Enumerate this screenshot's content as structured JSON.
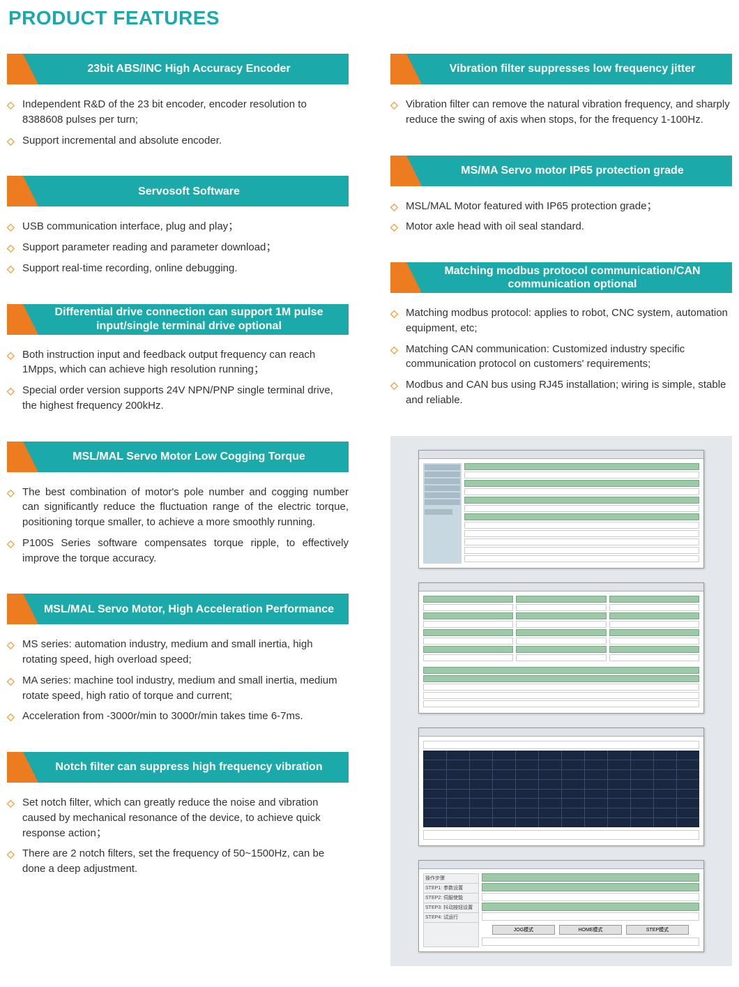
{
  "page_title": "PRODUCT FEATURES",
  "colors": {
    "accent_teal": "#1ba9a9",
    "accent_orange": "#ec7c1f",
    "bullet_orange": "#f2a23e",
    "text": "#333333",
    "screenshot_bg": "#e4e8ec",
    "mock_green": "#9cc9a8",
    "mock_chart_bg": "#1a2740"
  },
  "left": [
    {
      "title": "23bit ABS/INC High Accuracy Encoder",
      "items": [
        "Independent R&D of the 23 bit encoder, encoder resolution to 8388608 pulses per turn;",
        "Support incremental and absolute encoder."
      ]
    },
    {
      "title": "Servosoft Software",
      "items": [
        "USB communication interface, plug and play；",
        "Support parameter reading and parameter download；",
        "Support real-time recording, online debugging."
      ]
    },
    {
      "title": "Differential drive connection can support 1M pulse input/single terminal drive optional",
      "items": [
        "Both instruction input and feedback output frequency can reach 1Mpps, which can achieve high resolution running；",
        "Special order version supports 24V NPN/PNP single terminal drive, the highest frequency 200kHz."
      ]
    },
    {
      "title": "MSL/MAL Servo Motor Low Cogging Torque",
      "justify": true,
      "items": [
        "The best combination of motor's pole number and cogging number can significantly reduce the fluctuation range of the electric torque, positioning torque smaller, to achieve a more smoothly running.",
        "P100S Series software compensates torque ripple, to effectively improve the torque accuracy."
      ]
    },
    {
      "title": "MSL/MAL Servo Motor, High Acceleration Performance",
      "items": [
        "MS series: automation industry, medium and small inertia, high rotating speed, high overload speed;",
        "MA series: machine tool industry, medium and small inertia, medium rotate speed, high ratio of torque and current;",
        "Acceleration from -3000r/min to 3000r/min takes time 6-7ms."
      ]
    },
    {
      "title": "Notch filter can suppress high frequency vibration",
      "items": [
        "Set notch filter, which can greatly reduce the noise and vibration caused by mechanical resonance of the device, to achieve quick response action；",
        "There are 2 notch filters, set the frequency of 50~1500Hz, can be done a deep adjustment."
      ]
    }
  ],
  "right": [
    {
      "title": "Vibration filter suppresses low frequency jitter",
      "items": [
        "Vibration filter can remove the natural vibration frequency, and sharply reduce the swing of axis when stops, for the frequency 1-100Hz."
      ]
    },
    {
      "title": "MS/MA Servo motor IP65 protection grade",
      "items": [
        "MSL/MAL Motor featured with IP65 protection grade；",
        "Motor axle head with oil seal standard."
      ]
    },
    {
      "title": "Matching modbus protocol communication/CAN communication optional",
      "items": [
        "Matching modbus protocol: applies to robot, CNC system, automation equipment, etc;",
        "Matching CAN communication: Customized industry specific communication protocol on customers' requirements;",
        "Modbus and CAN bus using RJ45 installation; wiring is simple, stable and reliable."
      ]
    }
  ],
  "screenshots": {
    "win4_labels": [
      "操作步骤",
      "STEP1: 参数设置",
      "STEP2: 伺服使能",
      "STEP3: 抖动按钮设置",
      "STEP4: 试运行"
    ],
    "win4_buttons": [
      "JOG模式",
      "HOME模式",
      "STEP模式"
    ]
  }
}
